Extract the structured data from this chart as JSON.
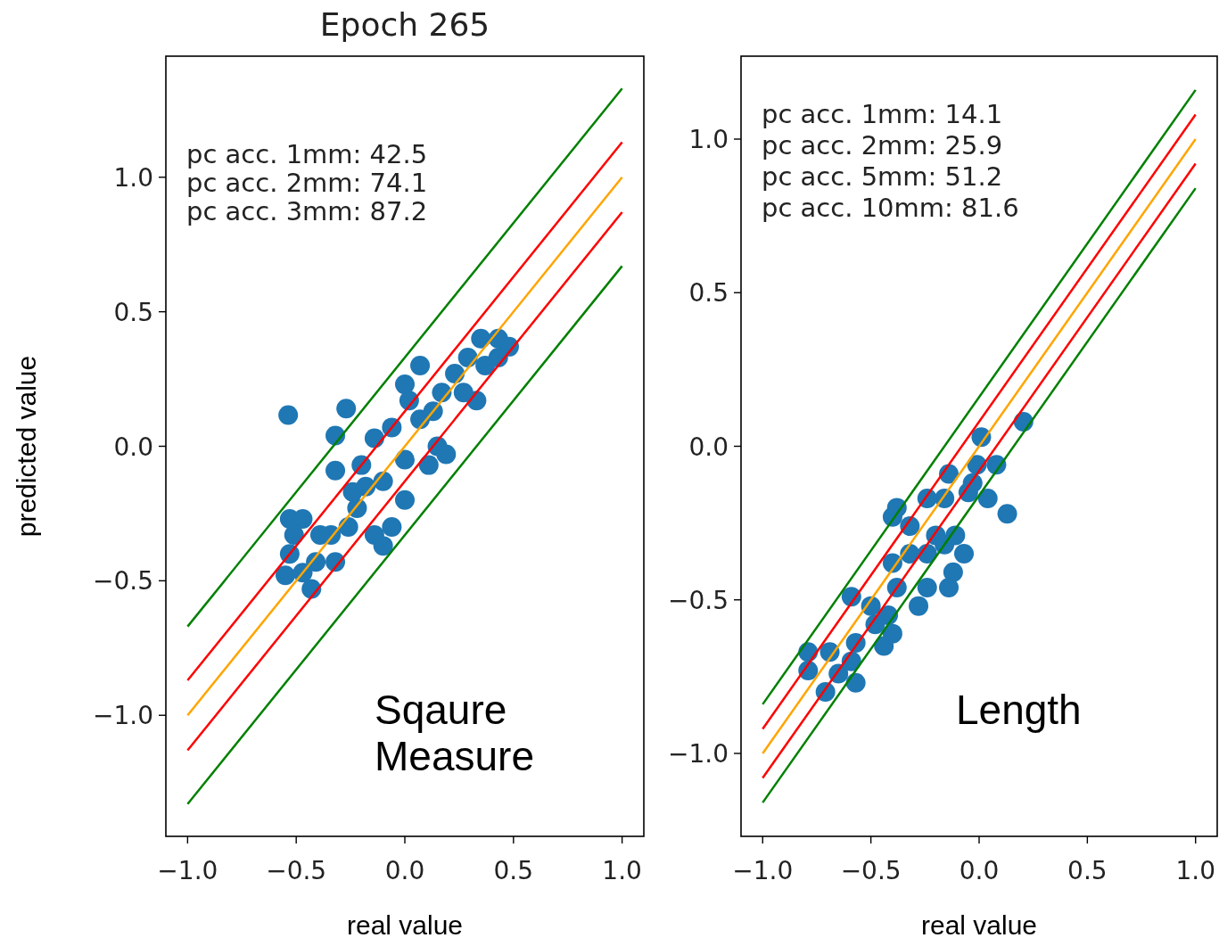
{
  "chart_data": [
    {
      "type": "scatter",
      "title": "Epoch 265",
      "xlabel": "real value",
      "ylabel": "predicted value",
      "marker": "circle",
      "xlim": [
        -1.1,
        1.1
      ],
      "ylim": [
        -1.45,
        1.45
      ],
      "xticks": [
        {
          "value": -1,
          "label": "−1.0"
        },
        {
          "value": -0.5,
          "label": "−0.5"
        },
        {
          "value": 0,
          "label": "0.0"
        },
        {
          "value": 0.5,
          "label": "0.5"
        },
        {
          "value": 1,
          "label": "1.0"
        }
      ],
      "yticks": [
        {
          "value": -1,
          "label": "−1.0"
        },
        {
          "value": -0.5,
          "label": "−0.5"
        },
        {
          "value": 0,
          "label": "0.0"
        },
        {
          "value": 0.5,
          "label": "0.5"
        },
        {
          "value": 1,
          "label": "1.0"
        }
      ],
      "annotations": [
        "pc acc. 1mm: 42.5",
        "pc acc. 2mm: 74.1",
        "pc acc. 3mm: 87.2",
        "Sqaure Measure"
      ],
      "series": [
        {
          "color": "#1f77b4",
          "x": [
            -0.537,
            -0.27,
            -0.32,
            -0.32,
            -0.53,
            -0.47,
            -0.53,
            -0.55,
            -0.43,
            -0.47,
            -0.41,
            -0.32,
            -0.34,
            -0.26,
            -0.22,
            -0.2,
            -0.18,
            -0.14,
            -0.1,
            -0.06,
            0.0,
            -0.14,
            -0.06,
            0.0,
            0.07,
            0.02,
            0.07,
            0.0,
            0.15,
            0.19,
            0.13,
            0.17,
            0.23,
            0.29,
            0.33,
            0.35,
            0.43,
            0.48,
            0.37,
            0.43,
            0.27,
            0.11,
            -0.1,
            -0.24,
            -0.39,
            -0.51
          ],
          "values": [
            0.116,
            0.14,
            0.04,
            -0.09,
            -0.27,
            -0.27,
            -0.4,
            -0.48,
            -0.53,
            -0.47,
            -0.43,
            -0.43,
            -0.33,
            -0.3,
            -0.23,
            -0.07,
            -0.15,
            -0.33,
            -0.37,
            -0.3,
            -0.2,
            0.03,
            0.07,
            0.23,
            0.3,
            0.17,
            0.1,
            -0.05,
            0.0,
            -0.03,
            0.13,
            0.2,
            0.27,
            0.33,
            0.17,
            0.4,
            0.4,
            0.37,
            0.3,
            0.33,
            0.2,
            -0.07,
            -0.13,
            -0.17,
            -0.33,
            -0.33
          ]
        },
        {
          "type": "line",
          "marker": "none",
          "color": "#ffa500",
          "x": [
            -1,
            1
          ],
          "values": [
            -1,
            1
          ]
        },
        {
          "type": "line",
          "marker": "none",
          "color": "#ff0000",
          "x": [
            -1,
            1
          ],
          "values": [
            -0.87,
            1.13
          ]
        },
        {
          "type": "line",
          "marker": "none",
          "color": "#ff0000",
          "x": [
            -1,
            1
          ],
          "values": [
            -1.13,
            0.87
          ]
        },
        {
          "type": "line",
          "marker": "none",
          "color": "#008000",
          "x": [
            -1,
            1
          ],
          "values": [
            -0.67,
            1.33
          ]
        },
        {
          "type": "line",
          "marker": "none",
          "color": "#008000",
          "x": [
            -1,
            1
          ],
          "values": [
            -1.33,
            0.67
          ]
        }
      ]
    },
    {
      "type": "scatter",
      "xlabel": "real value",
      "marker": "circle",
      "xlim": [
        -1.1,
        1.1
      ],
      "ylim": [
        -1.27,
        1.27
      ],
      "xticks": [
        {
          "value": -1,
          "label": "−1.0"
        },
        {
          "value": -0.5,
          "label": "−0.5"
        },
        {
          "value": 0,
          "label": "0.0"
        },
        {
          "value": 0.5,
          "label": "0.5"
        },
        {
          "value": 1,
          "label": "1.0"
        }
      ],
      "yticks": [
        {
          "value": -1,
          "label": "−1.0"
        },
        {
          "value": -0.5,
          "label": "−0.5"
        },
        {
          "value": 0,
          "label": "0.0"
        },
        {
          "value": 0.5,
          "label": "0.5"
        },
        {
          "value": 1,
          "label": "1.0"
        }
      ],
      "annotations": [
        "pc acc. 1mm: 14.1",
        "pc acc. 2mm: 25.9",
        "pc acc. 5mm: 51.2",
        "pc acc. 10mm: 81.6",
        "Length"
      ],
      "series": [
        {
          "color": "#1f77b4",
          "x": [
            0.205,
            0.13,
            0.04,
            0.08,
            0.01,
            -0.01,
            -0.14,
            -0.16,
            -0.11,
            -0.12,
            -0.14,
            -0.24,
            -0.32,
            -0.4,
            -0.38,
            -0.24,
            -0.2,
            -0.4,
            -0.38,
            -0.28,
            -0.42,
            -0.4,
            -0.48,
            -0.57,
            -0.44,
            -0.59,
            -0.57,
            -0.65,
            -0.79,
            -0.79,
            -0.69,
            -0.71,
            -0.59,
            -0.5,
            -0.07,
            -0.05,
            -0.03,
            -0.32,
            -0.24,
            -0.16
          ],
          "values": [
            0.08,
            -0.22,
            -0.17,
            -0.06,
            0.03,
            -0.06,
            -0.09,
            -0.17,
            -0.29,
            -0.41,
            -0.46,
            -0.46,
            -0.26,
            -0.23,
            -0.2,
            -0.17,
            -0.29,
            -0.38,
            -0.46,
            -0.52,
            -0.55,
            -0.61,
            -0.58,
            -0.64,
            -0.65,
            -0.7,
            -0.77,
            -0.74,
            -0.67,
            -0.73,
            -0.67,
            -0.8,
            -0.49,
            -0.52,
            -0.35,
            -0.15,
            -0.12,
            -0.35,
            -0.35,
            -0.32
          ]
        },
        {
          "type": "line",
          "marker": "none",
          "color": "#ffa500",
          "x": [
            -1,
            1
          ],
          "values": [
            -1,
            1
          ]
        },
        {
          "type": "line",
          "marker": "none",
          "color": "#ff0000",
          "x": [
            -1,
            1
          ],
          "values": [
            -0.92,
            1.08
          ]
        },
        {
          "type": "line",
          "marker": "none",
          "color": "#ff0000",
          "x": [
            -1,
            1
          ],
          "values": [
            -1.08,
            0.92
          ]
        },
        {
          "type": "line",
          "marker": "none",
          "color": "#008000",
          "x": [
            -1,
            1
          ],
          "values": [
            -0.84,
            1.16
          ]
        },
        {
          "type": "line",
          "marker": "none",
          "color": "#008000",
          "x": [
            -1,
            1
          ],
          "values": [
            -1.16,
            0.84
          ]
        }
      ]
    }
  ]
}
